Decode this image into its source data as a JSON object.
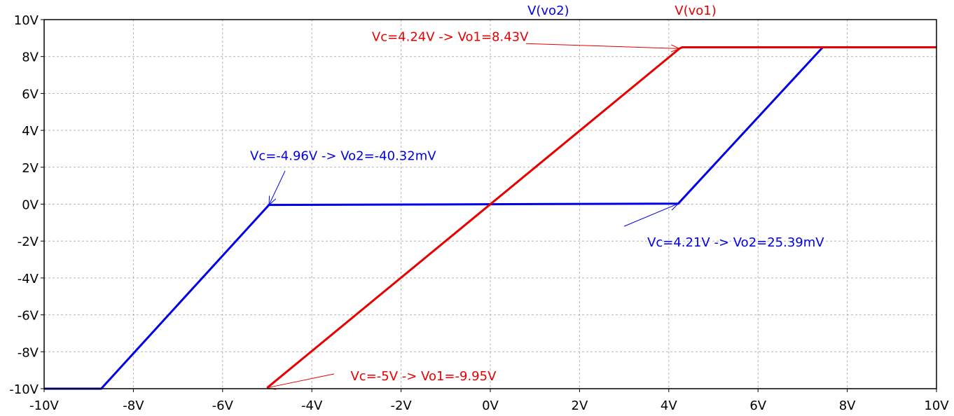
{
  "chart_data": {
    "type": "line",
    "title": "",
    "xlabel": "",
    "ylabel": "",
    "xlim": [
      -10,
      10
    ],
    "ylim": [
      -10,
      10
    ],
    "grid": true,
    "x_ticks": [
      {
        "value": -10,
        "label": "-10V"
      },
      {
        "value": -8,
        "label": "-8V"
      },
      {
        "value": -6,
        "label": "-6V"
      },
      {
        "value": -4,
        "label": "-4V"
      },
      {
        "value": -2,
        "label": "-2V"
      },
      {
        "value": 0,
        "label": "0V"
      },
      {
        "value": 2,
        "label": "2V"
      },
      {
        "value": 4,
        "label": "4V"
      },
      {
        "value": 6,
        "label": "6V"
      },
      {
        "value": 8,
        "label": "8V"
      },
      {
        "value": 10,
        "label": "10V"
      }
    ],
    "y_ticks": [
      {
        "value": 10,
        "label": "10V"
      },
      {
        "value": 8,
        "label": "8V"
      },
      {
        "value": 6,
        "label": "6V"
      },
      {
        "value": 4,
        "label": "4V"
      },
      {
        "value": 2,
        "label": "2V"
      },
      {
        "value": 0,
        "label": "0V"
      },
      {
        "value": -2,
        "label": "-2V"
      },
      {
        "value": -4,
        "label": "-4V"
      },
      {
        "value": -6,
        "label": "-6V"
      },
      {
        "value": -8,
        "label": "-8V"
      },
      {
        "value": -10,
        "label": "-10V"
      }
    ],
    "series": [
      {
        "name": "V(vo2)",
        "color": "#0000e6",
        "label_x": 1.3,
        "points": [
          [
            -10,
            -10
          ],
          [
            -8.72,
            -10
          ],
          [
            -4.96,
            -0.04032
          ],
          [
            4.21,
            0.02539
          ],
          [
            7.45,
            8.5
          ],
          [
            10,
            8.5
          ]
        ]
      },
      {
        "name": "V(vo1)",
        "color": "#e60000",
        "label_x": 4.6,
        "points": [
          [
            -5,
            -9.95
          ],
          [
            4.24,
            8.43
          ],
          [
            4.3,
            8.5
          ],
          [
            10,
            8.5
          ]
        ]
      }
    ],
    "annotations": [
      {
        "text": "Vc=4.24V -> Vo1=8.43V",
        "color": "#e60000",
        "text_x": -0.9,
        "text_y": 8.85,
        "anchor": "middle",
        "arrow_from": [
          0.8,
          8.7
        ],
        "arrow_to": [
          4.24,
          8.43
        ]
      },
      {
        "text": "Vc=-4.96V -> Vo2=-40.32mV",
        "color": "#0000e6",
        "text_x": -3.3,
        "text_y": 2.4,
        "anchor": "middle",
        "arrow_from": [
          -4.6,
          1.8
        ],
        "arrow_to": [
          -4.96,
          -0.04032
        ]
      },
      {
        "text": "Vc=4.21V -> Vo2=25.39mV",
        "color": "#0000e6",
        "text_x": 5.5,
        "text_y": -2.3,
        "anchor": "middle",
        "arrow_from": [
          3.0,
          -1.2
        ],
        "arrow_to": [
          4.21,
          0.02539
        ]
      },
      {
        "text": "Vc=-5V -> Vo1=-9.95V",
        "color": "#e60000",
        "text_x": -1.5,
        "text_y": -9.55,
        "anchor": "middle",
        "arrow_from": [
          -3.5,
          -9.2
        ],
        "arrow_to": [
          -5,
          -9.95
        ]
      }
    ]
  }
}
